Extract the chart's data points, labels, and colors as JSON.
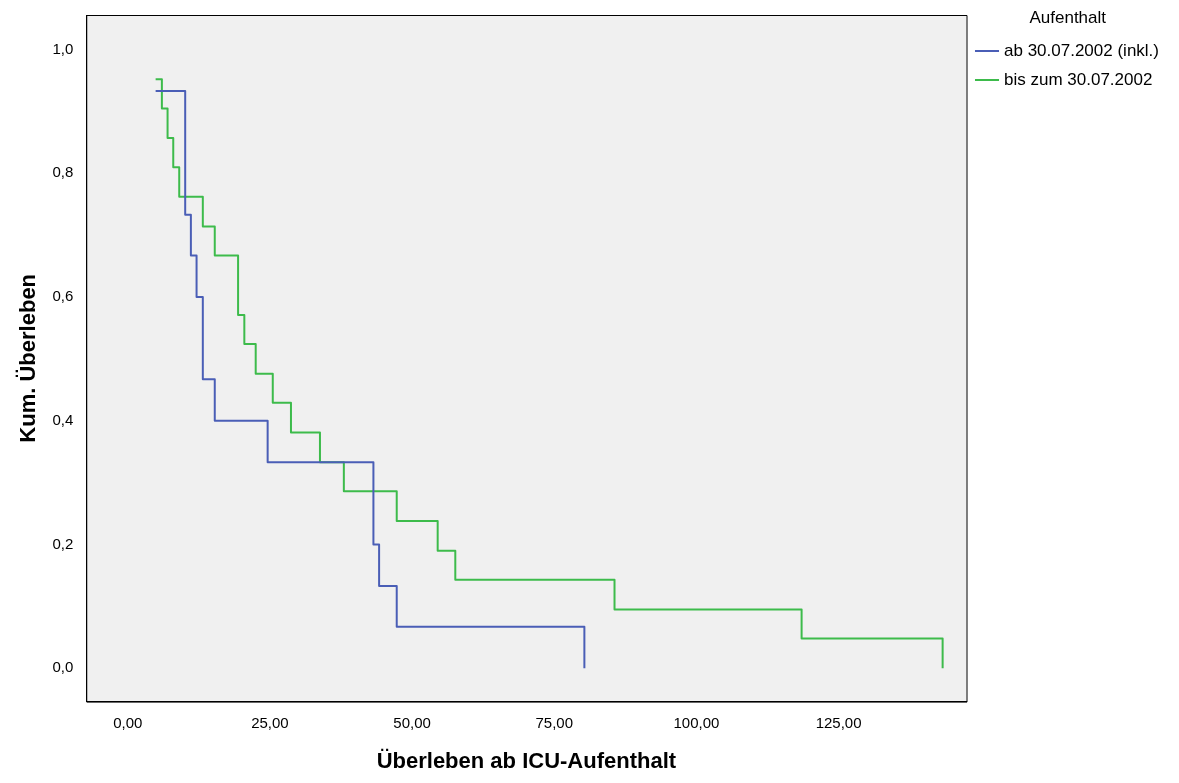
{
  "chart_data": {
    "type": "step",
    "xlabel": "Überleben ab ICU-Aufenthalt",
    "ylabel": "Kum. Überleben",
    "legend_title": "Aufenthalt",
    "legend": "top right",
    "grid": false,
    "marker": "none",
    "line_style": "solid",
    "xlim": [
      -7.3,
      147.5
    ],
    "xticks": [
      {
        "value": 0,
        "label": "0,00"
      },
      {
        "value": 25,
        "label": "25,00"
      },
      {
        "value": 50,
        "label": "50,00"
      },
      {
        "value": 75,
        "label": "75,00"
      },
      {
        "value": 100,
        "label": "100,00"
      },
      {
        "value": 125,
        "label": "125,00"
      }
    ],
    "ylim": [
      -0.054,
      1.056
    ],
    "yticks": [
      {
        "value": 0,
        "label": "0,0"
      },
      {
        "value": 0.2,
        "label": "0,2"
      },
      {
        "value": 0.4,
        "label": "0,4"
      },
      {
        "value": 0.6,
        "label": "0,6"
      },
      {
        "value": 0.8,
        "label": "0,8"
      },
      {
        "value": 1,
        "label": "1,0"
      }
    ],
    "series": [
      {
        "name": "ab 30.07.2002 (inkl.)",
        "color": "#4a5eb6",
        "x": [
          4.9,
          10.1,
          11.1,
          12.1,
          13.2,
          15.3,
          24.6,
          43.2,
          44.2,
          47.3,
          80.3
        ],
        "values": [
          0.933,
          0.733,
          0.667,
          0.6,
          0.467,
          0.4,
          0.333,
          0.2,
          0.133,
          0.067,
          0
        ]
      },
      {
        "name": "bis zum 30.07.2002",
        "color": "#3dbb4b",
        "x": [
          4.9,
          6.0,
          7.0,
          8.0,
          9.05,
          13.2,
          15.3,
          19.4,
          20.5,
          22.5,
          25.5,
          28.7,
          33.8,
          38.0,
          47.3,
          54.5,
          57.6,
          85.6,
          118.5,
          143.3
        ],
        "values": [
          0.952,
          0.905,
          0.857,
          0.81,
          0.762,
          0.714,
          0.667,
          0.571,
          0.524,
          0.476,
          0.429,
          0.381,
          0.333,
          0.286,
          0.238,
          0.19,
          0.143,
          0.095,
          0.048,
          0
        ]
      }
    ]
  }
}
